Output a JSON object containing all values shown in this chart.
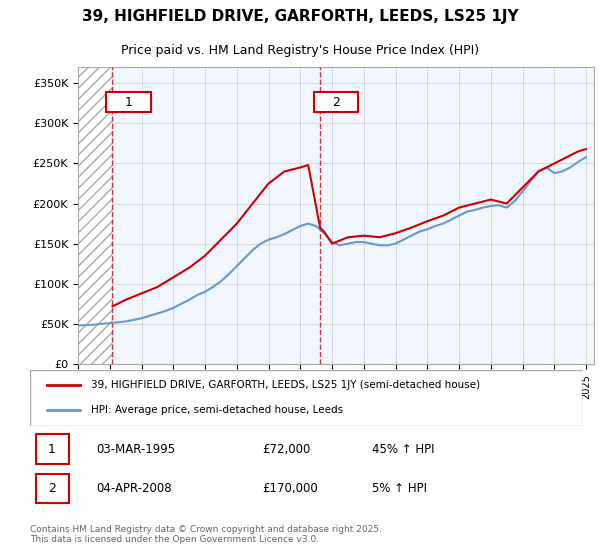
{
  "title": "39, HIGHFIELD DRIVE, GARFORTH, LEEDS, LS25 1JY",
  "subtitle": "Price paid vs. HM Land Registry's House Price Index (HPI)",
  "legend_line1": "39, HIGHFIELD DRIVE, GARFORTH, LEEDS, LS25 1JY (semi-detached house)",
  "legend_line2": "HPI: Average price, semi-detached house, Leeds",
  "label1_date": "03-MAR-1995",
  "label1_price": "£72,000",
  "label1_hpi": "45% ↑ HPI",
  "label2_date": "04-APR-2008",
  "label2_price": "£170,000",
  "label2_hpi": "5% ↑ HPI",
  "footer": "Contains HM Land Registry data © Crown copyright and database right 2025.\nThis data is licensed under the Open Government Licence v3.0.",
  "red_color": "#cc0000",
  "blue_color": "#6699cc",
  "hatch_color": "#cccccc",
  "background_color": "#ffffff",
  "ylim": [
    0,
    370000
  ],
  "purchase1_year": 1995.17,
  "purchase1_price": 72000,
  "purchase2_year": 2008.25,
  "purchase2_price": 170000,
  "hpi_years": [
    1993,
    1993.5,
    1994,
    1994.5,
    1995,
    1995.5,
    1996,
    1996.5,
    1997,
    1997.5,
    1998,
    1998.5,
    1999,
    1999.5,
    2000,
    2000.5,
    2001,
    2001.5,
    2002,
    2002.5,
    2003,
    2003.5,
    2004,
    2004.5,
    2005,
    2005.5,
    2006,
    2006.5,
    2007,
    2007.5,
    2008,
    2008.5,
    2009,
    2009.5,
    2010,
    2010.5,
    2011,
    2011.5,
    2012,
    2012.5,
    2013,
    2013.5,
    2014,
    2014.5,
    2015,
    2015.5,
    2016,
    2016.5,
    2017,
    2017.5,
    2018,
    2018.5,
    2019,
    2019.5,
    2020,
    2020.5,
    2021,
    2021.5,
    2022,
    2022.5,
    2023,
    2023.5,
    2024,
    2024.5,
    2025
  ],
  "hpi_values": [
    48000,
    48500,
    49000,
    50000,
    51000,
    52000,
    53000,
    55000,
    57000,
    60000,
    63000,
    66000,
    70000,
    75000,
    80000,
    86000,
    90000,
    96000,
    103000,
    112000,
    122000,
    132000,
    142000,
    150000,
    155000,
    158000,
    162000,
    167000,
    172000,
    175000,
    172000,
    163000,
    152000,
    148000,
    150000,
    152000,
    152000,
    150000,
    148000,
    148000,
    150000,
    155000,
    160000,
    165000,
    168000,
    172000,
    175000,
    180000,
    185000,
    190000,
    192000,
    195000,
    197000,
    198000,
    195000,
    203000,
    215000,
    228000,
    240000,
    245000,
    238000,
    240000,
    245000,
    252000,
    258000
  ],
  "price_years": [
    1993,
    1994,
    1995.17,
    1995.5,
    1996,
    1997,
    1998,
    1999,
    2000,
    2001,
    2002,
    2003,
    2004,
    2005,
    2006,
    2007,
    2007.5,
    2008.25,
    2008.5,
    2009,
    2010,
    2011,
    2012,
    2013,
    2014,
    2015,
    2016,
    2017,
    2018,
    2019,
    2020,
    2021,
    2022,
    2023,
    2024,
    2024.5,
    2025
  ],
  "price_values": [
    null,
    null,
    72000,
    75000,
    80000,
    88000,
    96000,
    108000,
    120000,
    135000,
    155000,
    175000,
    200000,
    225000,
    240000,
    245000,
    248000,
    170000,
    165000,
    150000,
    158000,
    160000,
    158000,
    163000,
    170000,
    178000,
    185000,
    195000,
    200000,
    205000,
    200000,
    220000,
    240000,
    250000,
    260000,
    265000,
    268000
  ]
}
